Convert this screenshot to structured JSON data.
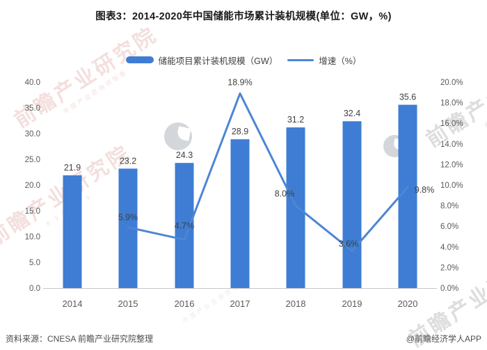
{
  "title": "图表3：2014-2020年中国储能市场累计装机规模(单位：GW，%)",
  "legend": [
    {
      "label": "储能项目累计装机规模（GW）",
      "type": "bar"
    },
    {
      "label": "增速（%）",
      "type": "line"
    }
  ],
  "chart_data": {
    "type": "bar",
    "categories": [
      "2014",
      "2015",
      "2016",
      "2017",
      "2018",
      "2019",
      "2020"
    ],
    "series": [
      {
        "name": "储能项目累计装机规模（GW）",
        "type": "bar",
        "axis": "left",
        "values": [
          21.9,
          23.2,
          24.3,
          28.9,
          31.2,
          32.4,
          35.6
        ],
        "labels": [
          "21.9",
          "23.2",
          "24.3",
          "28.9",
          "31.2",
          "32.4",
          "35.6"
        ]
      },
      {
        "name": "增速（%）",
        "type": "line",
        "axis": "right",
        "values": [
          null,
          5.9,
          4.7,
          18.9,
          8.0,
          3.6,
          9.8
        ],
        "labels": [
          null,
          "5.9%",
          "4.7%",
          "18.9%",
          "8.0%",
          "3.6%",
          "9.8%"
        ]
      }
    ],
    "left_axis": {
      "min": 0,
      "max": 40,
      "step": 5,
      "ticks": [
        "0.0",
        "5.0",
        "10.0",
        "15.0",
        "20.0",
        "25.0",
        "30.0",
        "35.0",
        "40.0"
      ]
    },
    "right_axis": {
      "min": 0,
      "max": 20,
      "step": 2,
      "ticks": [
        "0.0%",
        "2.0%",
        "4.0%",
        "6.0%",
        "8.0%",
        "10.0%",
        "12.0%",
        "14.0%",
        "16.0%",
        "18.0%",
        "20.0%"
      ]
    },
    "grid": false,
    "legend_position": "top",
    "colors": {
      "bar": "#3E7DD3",
      "line": "#4C86D4",
      "axis_line": "#C6C6C6",
      "tick_text": "#595959",
      "value_text": "#3F3F3F"
    }
  },
  "footer": {
    "source": "资料来源：CNESA 前瞻产业研究院整理",
    "credit": "@前瞻经济学人APP"
  },
  "watermarks": {
    "brand": "前瞻产业研究院",
    "slogan": "中国产业咨询领导者",
    "digits": "8 3 9 5 9 9"
  }
}
